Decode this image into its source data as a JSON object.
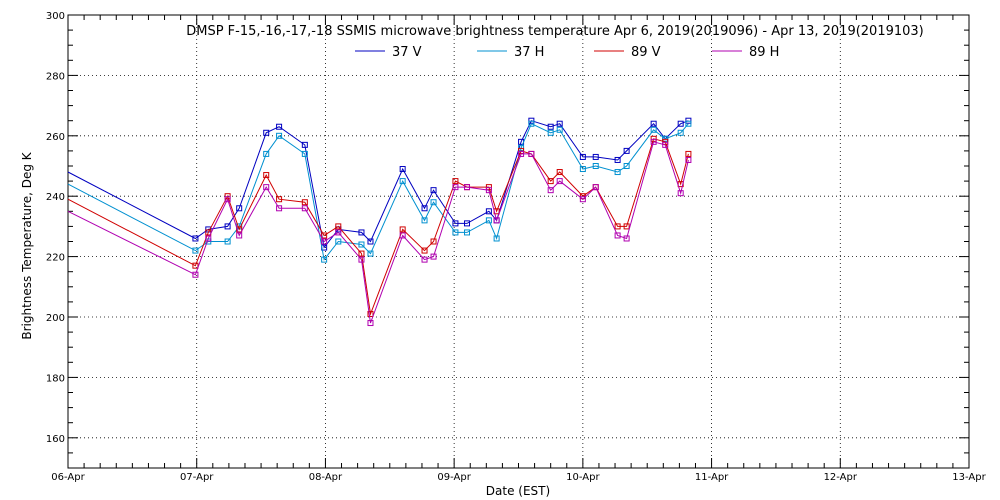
{
  "chart_data": {
    "type": "line",
    "title": "DMSP F-15,-16,-17,-18 SSMIS microwave brightness temperature Apr  6, 2019(2019096) - Apr 13, 2019(2019103)",
    "xlabel": "Date (EST)",
    "ylabel": "Brightness Temperature, Deg K",
    "xlim": [
      0,
      7
    ],
    "ylim": [
      150,
      300
    ],
    "x_tick_labels": [
      "06-Apr",
      "07-Apr",
      "08-Apr",
      "09-Apr",
      "10-Apr",
      "11-Apr",
      "12-Apr",
      "13-Apr"
    ],
    "y_ticks": [
      160,
      180,
      200,
      220,
      240,
      260,
      280,
      300
    ],
    "grid": true,
    "legend_position": "top-center",
    "series": [
      {
        "name": "37 V",
        "color": "#0000c0",
        "x": [
          0.0,
          0.99,
          1.09,
          1.24,
          1.33,
          1.54,
          1.64,
          1.84,
          1.99,
          2.1,
          2.28,
          2.35,
          2.6,
          2.77,
          2.84,
          3.01,
          3.1,
          3.27,
          3.33,
          3.52,
          3.6,
          3.75,
          3.82,
          4.0,
          4.1,
          4.27,
          4.34,
          4.55,
          4.64,
          4.76,
          4.82
        ],
        "values": [
          248,
          226,
          229,
          230,
          236,
          261,
          263,
          257,
          223,
          229,
          228,
          225,
          249,
          236,
          242,
          231,
          231,
          235,
          232,
          258,
          265,
          263,
          264,
          253,
          253,
          252,
          255,
          264,
          259,
          264,
          265
        ]
      },
      {
        "name": "37 H",
        "color": "#0090d0",
        "x": [
          0.0,
          0.99,
          1.09,
          1.24,
          1.33,
          1.54,
          1.64,
          1.84,
          1.99,
          2.1,
          2.28,
          2.35,
          2.6,
          2.77,
          2.84,
          3.01,
          3.1,
          3.27,
          3.33,
          3.52,
          3.6,
          3.75,
          3.82,
          4.0,
          4.1,
          4.27,
          4.34,
          4.55,
          4.64,
          4.76,
          4.82
        ],
        "values": [
          244,
          222,
          225,
          225,
          230,
          254,
          260,
          254,
          219,
          225,
          224,
          221,
          245,
          232,
          238,
          228,
          228,
          232,
          226,
          256,
          264,
          261,
          262,
          249,
          250,
          248,
          250,
          262,
          259,
          261,
          264
        ]
      },
      {
        "name": "89 V",
        "color": "#d00000",
        "x": [
          0.0,
          0.99,
          1.09,
          1.24,
          1.33,
          1.54,
          1.64,
          1.84,
          1.99,
          2.1,
          2.28,
          2.35,
          2.6,
          2.77,
          2.84,
          3.01,
          3.1,
          3.27,
          3.33,
          3.52,
          3.6,
          3.75,
          3.82,
          4.0,
          4.1,
          4.27,
          4.34,
          4.55,
          4.64,
          4.76,
          4.82
        ],
        "values": [
          239,
          217,
          228,
          240,
          229,
          247,
          239,
          238,
          227,
          230,
          221,
          201,
          229,
          222,
          225,
          245,
          243,
          243,
          235,
          255,
          254,
          245,
          248,
          240,
          243,
          230,
          230,
          259,
          258,
          244,
          254
        ]
      },
      {
        "name": "89 H",
        "color": "#b000b0",
        "x": [
          0.0,
          0.99,
          1.09,
          1.24,
          1.33,
          1.54,
          1.64,
          1.84,
          1.99,
          2.1,
          2.28,
          2.35,
          2.6,
          2.77,
          2.84,
          3.01,
          3.1,
          3.27,
          3.33,
          3.52,
          3.6,
          3.75,
          3.82,
          4.0,
          4.1,
          4.27,
          4.34,
          4.55,
          4.64,
          4.76,
          4.82
        ],
        "values": [
          235,
          214,
          226,
          239,
          227,
          243,
          236,
          236,
          225,
          228,
          219,
          198,
          227,
          219,
          220,
          243,
          243,
          242,
          232,
          254,
          254,
          242,
          245,
          239,
          243,
          227,
          226,
          258,
          257,
          241,
          252
        ]
      }
    ]
  }
}
